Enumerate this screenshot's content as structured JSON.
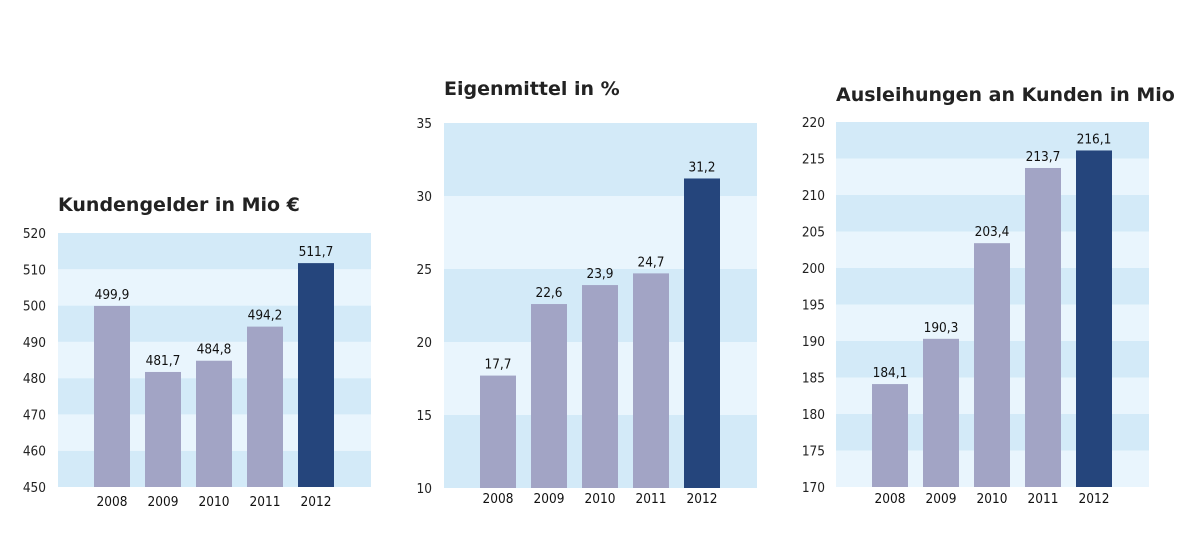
{
  "colors": {
    "band_dark": "#d3eaf8",
    "band_light": "#e9f5fd",
    "bar_default": "#a2a4c5",
    "bar_highlight": "#25457c"
  },
  "chart_data": [
    {
      "type": "bar",
      "title": "Kundengelder in Mio €",
      "categories": [
        "2008",
        "2009",
        "2010",
        "2011",
        "2012"
      ],
      "values": [
        499.9,
        481.7,
        484.8,
        494.2,
        511.7
      ],
      "value_labels": [
        "499,9",
        "481,7",
        "484,8",
        "494,2",
        "511,7"
      ],
      "yticks": [
        "450",
        "460",
        "470",
        "480",
        "490",
        "500",
        "510",
        "520"
      ],
      "ylim": [
        450,
        520
      ],
      "highlight_index": 4,
      "grid": "alternating horizontal bands",
      "legend": "none"
    },
    {
      "type": "bar",
      "title": "Eigenmittel in %",
      "categories": [
        "2008",
        "2009",
        "2010",
        "2011",
        "2012"
      ],
      "values": [
        17.7,
        22.6,
        23.9,
        24.7,
        31.2
      ],
      "value_labels": [
        "17,7",
        "22,6",
        "23,9",
        "24,7",
        "31,2"
      ],
      "yticks": [
        "10",
        "15",
        "20",
        "25",
        "30",
        "35"
      ],
      "ylim": [
        10,
        35
      ],
      "highlight_index": 4,
      "grid": "alternating horizontal bands",
      "legend": "none"
    },
    {
      "type": "bar",
      "title": "Ausleihungen an Kunden in Mio €",
      "categories": [
        "2008",
        "2009",
        "2010",
        "2011",
        "2012"
      ],
      "values": [
        184.1,
        190.3,
        203.4,
        213.7,
        216.1
      ],
      "value_labels": [
        "184,1",
        "190,3",
        "203,4",
        "213,7",
        "216,1"
      ],
      "yticks": [
        "170",
        "175",
        "180",
        "185",
        "190",
        "195",
        "200",
        "205",
        "210",
        "215",
        "220"
      ],
      "ylim": [
        170,
        220
      ],
      "highlight_index": 4,
      "grid": "alternating horizontal bands",
      "legend": "none"
    }
  ]
}
